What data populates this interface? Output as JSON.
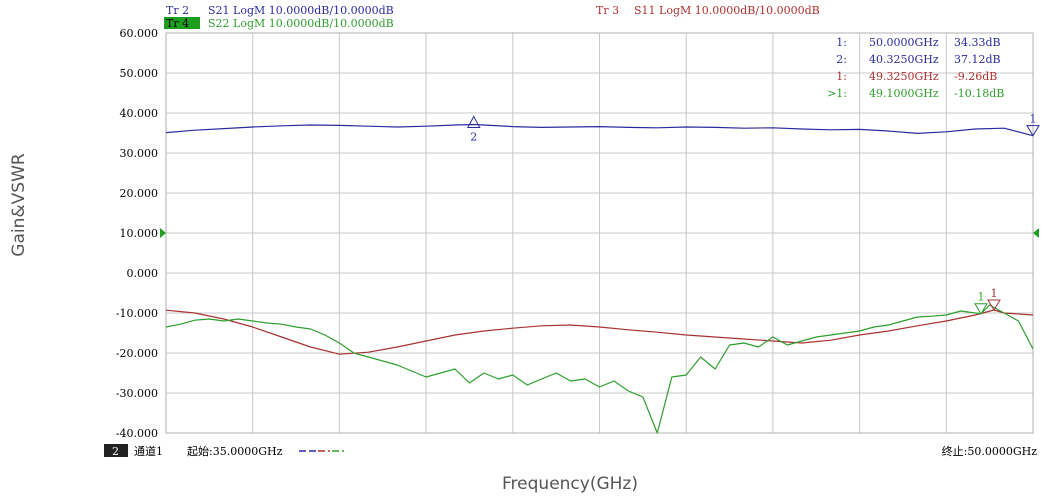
{
  "header": {
    "tr2_id": "Tr 2",
    "tr2_text": "S21 LogM 10.0000dB/10.0000dB",
    "tr4_id": "Tr 4",
    "tr4_text": "S22 LogM 10.0000dB/10.0000dB",
    "tr3_id": "Tr 3",
    "tr3_text": "S11 LogM 10.0000dB/10.0000dB"
  },
  "marker_table": [
    {
      "prefix": "1:",
      "freq": "50.0000GHz",
      "value": "34.33dB",
      "color": "#2b2b9f"
    },
    {
      "prefix": "2:",
      "freq": "40.3250GHz",
      "value": "37.12dB",
      "color": "#2b2b9f"
    },
    {
      "prefix": "1:",
      "freq": "49.3250GHz",
      "value": "-9.26dB",
      "color": "#b03030"
    },
    {
      "prefix": ">1:",
      "freq": "49.1000GHz",
      "value": "-10.18dB",
      "color": "#2e9e2e"
    }
  ],
  "footer": {
    "channel_num": "2",
    "channel_label": "通道1",
    "start": "起始:35.0000GHz",
    "stop": "终止:50.0000GHz"
  },
  "colors": {
    "s21": "#2b2b9f",
    "s11": "#a83232",
    "s22": "#2e9e2e",
    "grid": "#c8c8c8",
    "tr4_badge": "#1e9e1e",
    "ref_marker": "#1ea01e"
  },
  "chart_data": {
    "type": "line",
    "xlabel": "Frequency(GHz)",
    "ylabel": "Gain&VSWR",
    "xlim": [
      35,
      50
    ],
    "ylim": [
      -40,
      60
    ],
    "y_ticks": [
      "60.000",
      "50.000",
      "40.000",
      "30.000",
      "20.000",
      "10.000",
      "0.000",
      "-10.000",
      "-20.000",
      "-30.000",
      "-40.000"
    ],
    "grid": true,
    "reference_level": 10,
    "series": [
      {
        "name": "S21",
        "x": [
          35,
          35.5,
          36,
          36.5,
          37,
          37.5,
          38,
          38.5,
          39,
          39.5,
          40,
          40.325,
          40.5,
          41,
          41.5,
          42,
          42.5,
          43,
          43.5,
          44,
          44.5,
          45,
          45.5,
          46,
          46.5,
          47,
          47.5,
          48,
          48.5,
          49,
          49.5,
          50
        ],
        "values": [
          35.1,
          35.7,
          36.1,
          36.5,
          36.8,
          37.0,
          36.9,
          36.7,
          36.5,
          36.7,
          37.0,
          37.12,
          37.0,
          36.6,
          36.4,
          36.5,
          36.6,
          36.4,
          36.3,
          36.5,
          36.4,
          36.2,
          36.3,
          36.0,
          35.8,
          35.9,
          35.5,
          34.9,
          35.3,
          36.0,
          36.2,
          34.33
        ],
        "markers": [
          {
            "label": "2",
            "x": 40.325,
            "y": 37.12
          },
          {
            "label": "1",
            "x": 50.0,
            "y": 34.33
          }
        ]
      },
      {
        "name": "S11",
        "x": [
          35,
          35.5,
          36,
          36.5,
          37,
          37.5,
          38,
          38.5,
          39,
          39.5,
          40,
          40.5,
          41,
          41.5,
          42,
          42.5,
          43,
          43.5,
          44,
          44.5,
          45,
          45.5,
          46,
          46.5,
          47,
          47.5,
          48,
          48.5,
          49,
          49.325,
          49.5,
          50
        ],
        "values": [
          -9.3,
          -10.0,
          -11.5,
          -13.5,
          -16.0,
          -18.5,
          -20.3,
          -19.8,
          -18.5,
          -17.0,
          -15.5,
          -14.5,
          -13.8,
          -13.2,
          -13.0,
          -13.5,
          -14.2,
          -14.8,
          -15.5,
          -16.0,
          -16.5,
          -17.0,
          -17.5,
          -16.8,
          -15.5,
          -14.5,
          -13.2,
          -12.0,
          -10.5,
          -9.26,
          -10.0,
          -10.5
        ],
        "markers": [
          {
            "label": "1",
            "x": 49.325,
            "y": -9.26
          }
        ]
      },
      {
        "name": "S22",
        "x": [
          35,
          35.25,
          35.5,
          35.75,
          36,
          36.25,
          36.5,
          36.75,
          37,
          37.25,
          37.5,
          37.75,
          38,
          38.25,
          38.5,
          38.75,
          39,
          39.25,
          39.5,
          39.75,
          40,
          40.25,
          40.5,
          40.75,
          41,
          41.25,
          41.5,
          41.75,
          42,
          42.25,
          42.5,
          42.75,
          43,
          43.25,
          43.5,
          43.75,
          44,
          44.25,
          44.5,
          44.75,
          45,
          45.25,
          45.5,
          45.75,
          46,
          46.25,
          46.5,
          46.75,
          47,
          47.25,
          47.5,
          47.75,
          48,
          48.25,
          48.5,
          48.75,
          49,
          49.1,
          49.25,
          49.5,
          49.75,
          50
        ],
        "values": [
          -13.5,
          -12.8,
          -11.8,
          -11.5,
          -12.0,
          -11.5,
          -12.0,
          -12.5,
          -12.8,
          -13.5,
          -14.0,
          -15.5,
          -17.5,
          -20.0,
          -21.0,
          -22.0,
          -23.0,
          -24.5,
          -26.0,
          -25.0,
          -24.0,
          -27.5,
          -25.0,
          -26.5,
          -25.5,
          -28.0,
          -26.5,
          -25.0,
          -27.0,
          -26.5,
          -28.5,
          -27.0,
          -29.5,
          -31.0,
          -40.0,
          -26.0,
          -25.5,
          -21.0,
          -24.0,
          -18.0,
          -17.5,
          -18.5,
          -16.0,
          -18.0,
          -17.0,
          -16.0,
          -15.5,
          -15.0,
          -14.5,
          -13.5,
          -13.0,
          -12.0,
          -11.0,
          -10.8,
          -10.5,
          -9.5,
          -10.0,
          -10.18,
          -8.0,
          -10.0,
          -12.0,
          -19.0
        ],
        "markers": [
          {
            "label": "1",
            "x": 49.1,
            "y": -10.18
          }
        ]
      }
    ]
  }
}
